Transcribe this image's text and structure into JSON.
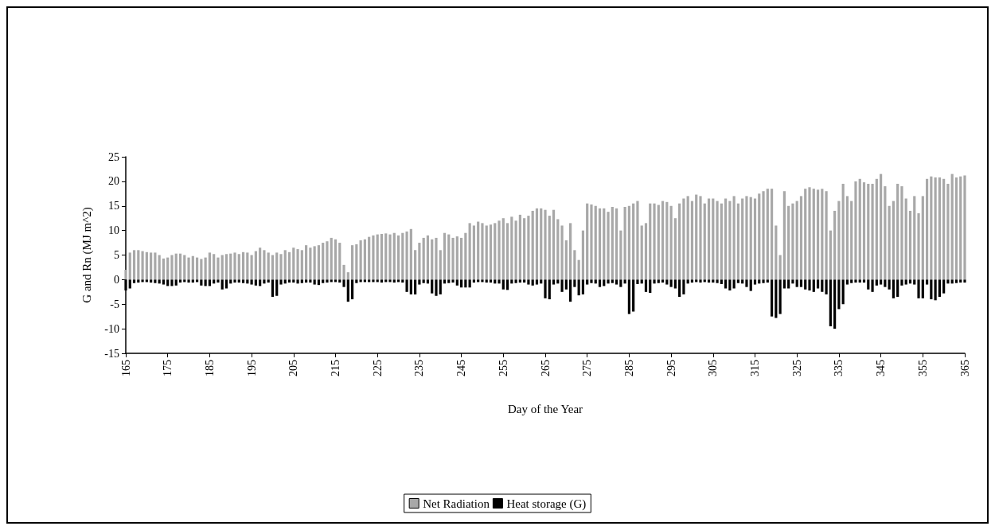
{
  "chart_data": {
    "type": "bar",
    "xlabel": "Day of the Year",
    "ylabel": "G and Rn (MJ m^2)",
    "x": [
      165,
      166,
      167,
      168,
      169,
      170,
      171,
      172,
      173,
      174,
      175,
      176,
      177,
      178,
      179,
      180,
      181,
      182,
      183,
      184,
      185,
      186,
      187,
      188,
      189,
      190,
      191,
      192,
      193,
      194,
      195,
      196,
      197,
      198,
      199,
      200,
      201,
      202,
      203,
      204,
      205,
      206,
      207,
      208,
      209,
      210,
      211,
      212,
      213,
      214,
      215,
      216,
      217,
      218,
      219,
      220,
      221,
      222,
      223,
      224,
      225,
      226,
      227,
      228,
      229,
      230,
      231,
      232,
      233,
      234,
      235,
      236,
      237,
      238,
      239,
      240,
      241,
      242,
      243,
      244,
      245,
      246,
      247,
      248,
      249,
      250,
      251,
      252,
      253,
      254,
      255,
      256,
      257,
      258,
      259,
      260,
      261,
      262,
      263,
      264,
      265,
      266,
      267,
      268,
      269,
      270,
      271,
      272,
      273,
      274,
      275,
      276,
      277,
      278,
      279,
      280,
      281,
      282,
      283,
      284,
      285,
      286,
      287,
      288,
      289,
      290,
      291,
      292,
      293,
      294,
      295,
      296,
      297,
      298,
      299,
      300,
      301,
      302,
      303,
      304,
      305,
      306,
      307,
      308,
      309,
      310,
      311,
      312,
      313,
      314,
      315,
      316,
      317,
      318,
      319,
      320,
      321,
      322,
      323,
      324,
      325,
      326,
      327,
      328,
      329,
      330,
      331,
      332,
      333,
      334,
      335,
      336,
      337,
      338,
      339,
      340,
      341,
      342,
      343,
      344,
      345,
      346,
      347,
      348,
      349,
      350,
      351,
      352,
      353,
      354,
      355,
      356,
      357,
      358,
      359,
      360,
      361,
      362,
      363,
      364,
      365
    ],
    "series": [
      {
        "name": "Net Radiation",
        "color": "#a8a8a8",
        "values": [
          2,
          5.5,
          6,
          6,
          5.8,
          5.6,
          5.5,
          5.5,
          5,
          4.3,
          4.5,
          5,
          5.3,
          5.3,
          5,
          4.5,
          4.8,
          4.5,
          4.2,
          4.5,
          5.5,
          5.2,
          4.5,
          5,
          5.2,
          5.3,
          5.5,
          5.2,
          5.6,
          5.5,
          5,
          5.8,
          6.5,
          6,
          5.5,
          5,
          5.5,
          5.2,
          6,
          5.6,
          6.5,
          6.2,
          6,
          7,
          6.5,
          6.8,
          7,
          7.5,
          7.8,
          8.5,
          8.2,
          7.5,
          3,
          1.5,
          7,
          7.2,
          8,
          8.2,
          8.7,
          9,
          9.2,
          9.3,
          9.4,
          9.2,
          9.5,
          9,
          9.5,
          9.8,
          10.3,
          6,
          7.5,
          8.5,
          9,
          8.2,
          8.5,
          6,
          9.5,
          9.2,
          8.5,
          8.8,
          8.5,
          9.5,
          11.5,
          11,
          11.8,
          11.5,
          11,
          11.2,
          11.5,
          12,
          12.5,
          11.5,
          12.8,
          12,
          13.2,
          12.5,
          13,
          14,
          14.5,
          14.5,
          14.2,
          13,
          14.2,
          12.3,
          11,
          8,
          11.5,
          6,
          4,
          10,
          15.5,
          15.3,
          15,
          14.5,
          14.5,
          13.8,
          14.8,
          14.5,
          10,
          14.8,
          15,
          15.5,
          16,
          11,
          11.5,
          15.5,
          15.5,
          15.2,
          16,
          15.8,
          15,
          12.5,
          15.5,
          16.5,
          17,
          16,
          17.3,
          17,
          15.5,
          16.5,
          16.5,
          16,
          15.5,
          16.5,
          16,
          17,
          15.5,
          16.5,
          17,
          16.8,
          16.5,
          17.5,
          18,
          18.5,
          18.5,
          11,
          5,
          18,
          15,
          15.5,
          16,
          17,
          18.5,
          18.8,
          18.5,
          18.3,
          18.5,
          18,
          10,
          14,
          16,
          19.5,
          17,
          16,
          20,
          20.5,
          19.8,
          19.5,
          19.5,
          20.5,
          21.5,
          19,
          15,
          16,
          19.5,
          19,
          16.5,
          14,
          17,
          13.5,
          17,
          20.5,
          21,
          20.8,
          20.8,
          20.5,
          19.5,
          21.5,
          20.8,
          21,
          21.2
        ]
      },
      {
        "name": "Heat storage (G)",
        "color": "#000000",
        "values": [
          -2.2,
          -1.8,
          -0.7,
          -0.6,
          -0.5,
          -0.5,
          -0.6,
          -0.7,
          -0.8,
          -1,
          -1.3,
          -1.3,
          -1.2,
          -0.6,
          -0.5,
          -0.6,
          -0.6,
          -0.5,
          -1.2,
          -1.3,
          -1.3,
          -0.8,
          -0.6,
          -2,
          -1.8,
          -0.8,
          -0.6,
          -0.6,
          -0.7,
          -0.8,
          -1,
          -1.2,
          -1.3,
          -0.8,
          -0.6,
          -3.5,
          -3.3,
          -1,
          -0.8,
          -0.6,
          -0.6,
          -0.8,
          -0.7,
          -0.6,
          -0.6,
          -1,
          -1.1,
          -0.7,
          -0.6,
          -0.5,
          -0.5,
          -0.6,
          -1.5,
          -4.5,
          -4,
          -0.7,
          -0.5,
          -0.5,
          -0.5,
          -0.5,
          -0.5,
          -0.6,
          -0.5,
          -0.5,
          -0.6,
          -0.5,
          -0.6,
          -2.5,
          -3,
          -3,
          -1,
          -0.7,
          -0.8,
          -2.8,
          -3.3,
          -3,
          -0.8,
          -0.7,
          -0.6,
          -1.2,
          -1.6,
          -1.6,
          -1.6,
          -0.6,
          -0.5,
          -0.5,
          -0.6,
          -0.6,
          -0.8,
          -0.8,
          -2,
          -2.1,
          -0.8,
          -0.7,
          -0.6,
          -0.6,
          -1,
          -1.2,
          -1,
          -0.8,
          -3.8,
          -4,
          -1,
          -0.8,
          -2.5,
          -2,
          -4.5,
          -1.5,
          -3.2,
          -3,
          -1,
          -0.7,
          -0.8,
          -1.5,
          -1.3,
          -0.8,
          -0.7,
          -1,
          -1.5,
          -0.8,
          -7,
          -6.5,
          -0.9,
          -0.8,
          -2.5,
          -2.7,
          -0.8,
          -0.7,
          -0.6,
          -1,
          -1.5,
          -1.8,
          -3.5,
          -3,
          -0.8,
          -0.6,
          -0.5,
          -0.6,
          -0.5,
          -0.6,
          -0.6,
          -0.7,
          -0.9,
          -1.8,
          -2.2,
          -1.8,
          -0.7,
          -0.8,
          -1.5,
          -2.3,
          -1,
          -0.8,
          -0.7,
          -0.6,
          -7.5,
          -7.8,
          -7,
          -1.8,
          -1.8,
          -0.8,
          -1.5,
          -1.5,
          -2,
          -2.2,
          -2.5,
          -1.8,
          -2.5,
          -3,
          -9.5,
          -10,
          -6,
          -5,
          -1,
          -0.7,
          -0.6,
          -0.6,
          -0.6,
          -2,
          -2.5,
          -1.2,
          -1,
          -1.5,
          -2,
          -3.8,
          -3.5,
          -1.2,
          -1,
          -0.8,
          -1,
          -3.8,
          -3.8,
          -1,
          -4,
          -4.2,
          -3.5,
          -2.8,
          -0.8,
          -0.8,
          -0.7,
          -0.6,
          -0.6
        ]
      }
    ],
    "xlim": [
      165,
      365
    ],
    "xticks": [
      165,
      175,
      185,
      195,
      205,
      215,
      225,
      235,
      245,
      255,
      265,
      275,
      285,
      295,
      305,
      315,
      325,
      335,
      345,
      355,
      365
    ],
    "ylim": [
      -15,
      25
    ],
    "yticks": [
      -15,
      -10,
      -5,
      0,
      5,
      10,
      15,
      20,
      25
    ],
    "grid": false,
    "legend": "bottom",
    "stacked": true
  }
}
